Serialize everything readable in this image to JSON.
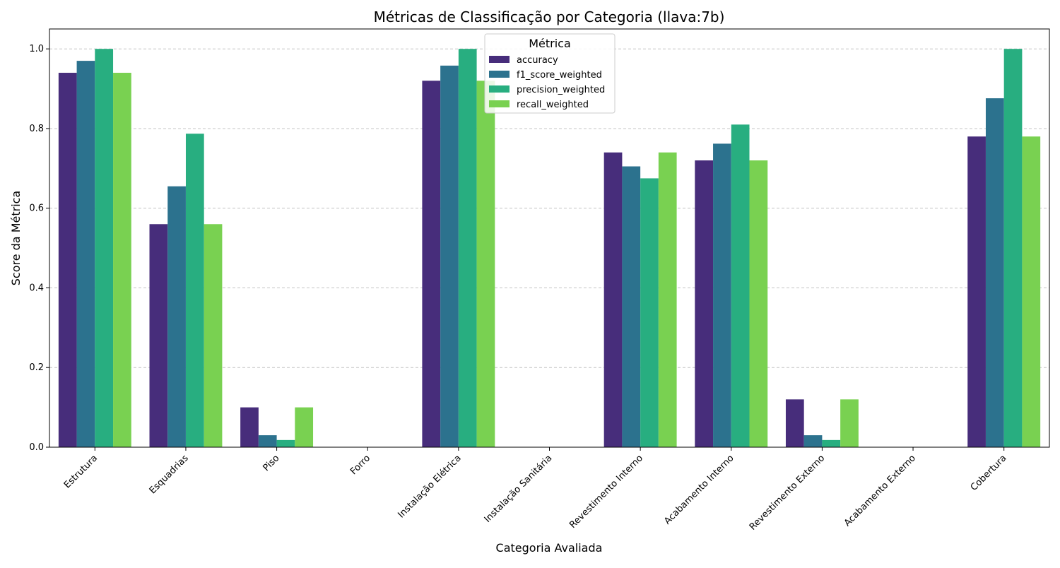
{
  "chart_data": {
    "type": "bar",
    "title": "Métricas de Classificação por Categoria (llava:7b)",
    "xlabel": "Categoria Avaliada",
    "ylabel": "Score da Métrica",
    "ylim": [
      0,
      1.05
    ],
    "yticks": [
      0.0,
      0.2,
      0.4,
      0.6,
      0.8,
      1.0
    ],
    "ytick_labels": [
      "0.0",
      "0.2",
      "0.4",
      "0.6",
      "0.8",
      "1.0"
    ],
    "grid": "y-dashed",
    "legend": {
      "title": "Métrica",
      "placement": "top-center"
    },
    "categories": [
      "Estrutura",
      "Esquadrias",
      "Piso",
      "Forro",
      "Instalação Elétrica",
      "Instalação Sanitária",
      "Revestimento Interno",
      "Acabamento Interno",
      "Revestimento Externo",
      "Acabamento Externo",
      "Cobertura"
    ],
    "series": [
      {
        "name": "accuracy",
        "color": "#472d7b",
        "values": [
          0.94,
          0.56,
          0.1,
          0.0,
          0.92,
          0.0,
          0.74,
          0.72,
          0.12,
          0.0,
          0.78
        ]
      },
      {
        "name": "f1_score_weighted",
        "color": "#2c728e",
        "values": [
          0.97,
          0.655,
          0.03,
          0.0,
          0.958,
          0.0,
          0.705,
          0.762,
          0.03,
          0.0,
          0.876
        ]
      },
      {
        "name": "precision_weighted",
        "color": "#28ae80",
        "values": [
          1.0,
          0.787,
          0.018,
          0.0,
          1.0,
          0.0,
          0.675,
          0.81,
          0.018,
          0.0,
          1.0
        ]
      },
      {
        "name": "recall_weighted",
        "color": "#79d151",
        "values": [
          0.94,
          0.56,
          0.1,
          0.0,
          0.92,
          0.0,
          0.74,
          0.72,
          0.12,
          0.0,
          0.78
        ]
      }
    ]
  }
}
